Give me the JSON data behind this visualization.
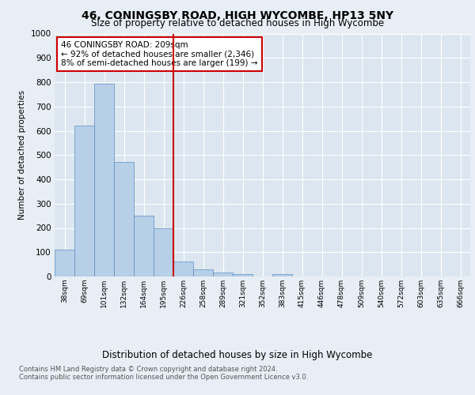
{
  "title1": "46, CONINGSBY ROAD, HIGH WYCOMBE, HP13 5NY",
  "title2": "Size of property relative to detached houses in High Wycombe",
  "xlabel": "Distribution of detached houses by size in High Wycombe",
  "ylabel": "Number of detached properties",
  "bar_labels": [
    "38sqm",
    "69sqm",
    "101sqm",
    "132sqm",
    "164sqm",
    "195sqm",
    "226sqm",
    "258sqm",
    "289sqm",
    "321sqm",
    "352sqm",
    "383sqm",
    "415sqm",
    "446sqm",
    "478sqm",
    "509sqm",
    "540sqm",
    "572sqm",
    "603sqm",
    "635sqm",
    "666sqm"
  ],
  "bar_values": [
    110,
    620,
    795,
    470,
    250,
    200,
    63,
    28,
    17,
    10,
    0,
    10,
    0,
    0,
    0,
    0,
    0,
    0,
    0,
    0,
    0
  ],
  "bar_color": "#b8cfe8",
  "bar_edge_color": "#5a8fc0",
  "vline_x": 5.5,
  "vline_color": "#cc0000",
  "annotation_line1": "46 CONINGSBY ROAD: 209sqm",
  "annotation_line2": "← 92% of detached houses are smaller (2,346)",
  "annotation_line3": "8% of semi-detached houses are larger (199) →",
  "annotation_box_color": "#cc0000",
  "ylim": [
    0,
    1000
  ],
  "yticks": [
    0,
    100,
    200,
    300,
    400,
    500,
    600,
    700,
    800,
    900,
    1000
  ],
  "footer1": "Contains HM Land Registry data © Crown copyright and database right 2024.",
  "footer2": "Contains public sector information licensed under the Open Government Licence v3.0.",
  "background_color": "#e8eef5",
  "plot_background": "#dce6f0"
}
